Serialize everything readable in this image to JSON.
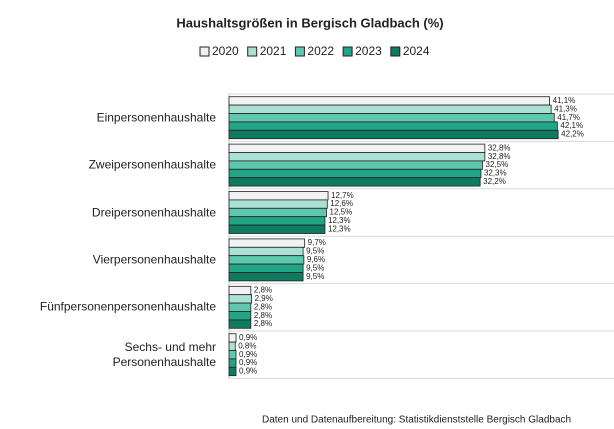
{
  "chart_data": {
    "type": "hbar",
    "title": "Haushaltsgrößen in Bergisch Gladbach (%)",
    "source": "Daten und Datenaufbereitung: Statistikdienststelle Bergisch Gladbach",
    "categories": [
      "Einpersonenhaushalte",
      "Zweipersonenhaushalte",
      "Dreipersonenhaushalte",
      "Vierpersonenhaushalte",
      "Fünfpersonenpersonenhaushalte",
      "Sechs- und mehr\nPersonenhaushalte"
    ],
    "xlim": [
      0,
      45
    ],
    "series": [
      {
        "name": "2020",
        "color": "#f2f2f2",
        "values": [
          41.1,
          32.8,
          12.7,
          9.7,
          2.8,
          0.9
        ],
        "value_labels": [
          "41,1%",
          "32,8%",
          "12,7%",
          "9,7%",
          "2,8%",
          "0,9%"
        ]
      },
      {
        "name": "2021",
        "color": "#a9e1d4",
        "values": [
          41.3,
          32.8,
          12.6,
          9.5,
          2.9,
          0.8
        ],
        "value_labels": [
          "41,3%",
          "32,8%",
          "12,6%",
          "9,5%",
          "2,9%",
          "0,8%"
        ]
      },
      {
        "name": "2022",
        "color": "#5ec8af",
        "values": [
          41.7,
          32.5,
          12.5,
          9.6,
          2.8,
          0.9
        ],
        "value_labels": [
          "41,7%",
          "32,5%",
          "12,5%",
          "9,6%",
          "2,8%",
          "0,9%"
        ]
      },
      {
        "name": "2023",
        "color": "#22a487",
        "values": [
          42.1,
          32.3,
          12.3,
          9.5,
          2.8,
          0.9
        ],
        "value_labels": [
          "42,1%",
          "32,3%",
          "12,3%",
          "9,5%",
          "2,8%",
          "0,9%"
        ]
      },
      {
        "name": "2024",
        "color": "#0e7b61",
        "values": [
          42.2,
          32.2,
          12.3,
          9.5,
          2.8,
          0.9
        ],
        "value_labels": [
          "42,2%",
          "32,2%",
          "12,3%",
          "9,5%",
          "2,8%",
          "0,9%"
        ]
      }
    ]
  }
}
